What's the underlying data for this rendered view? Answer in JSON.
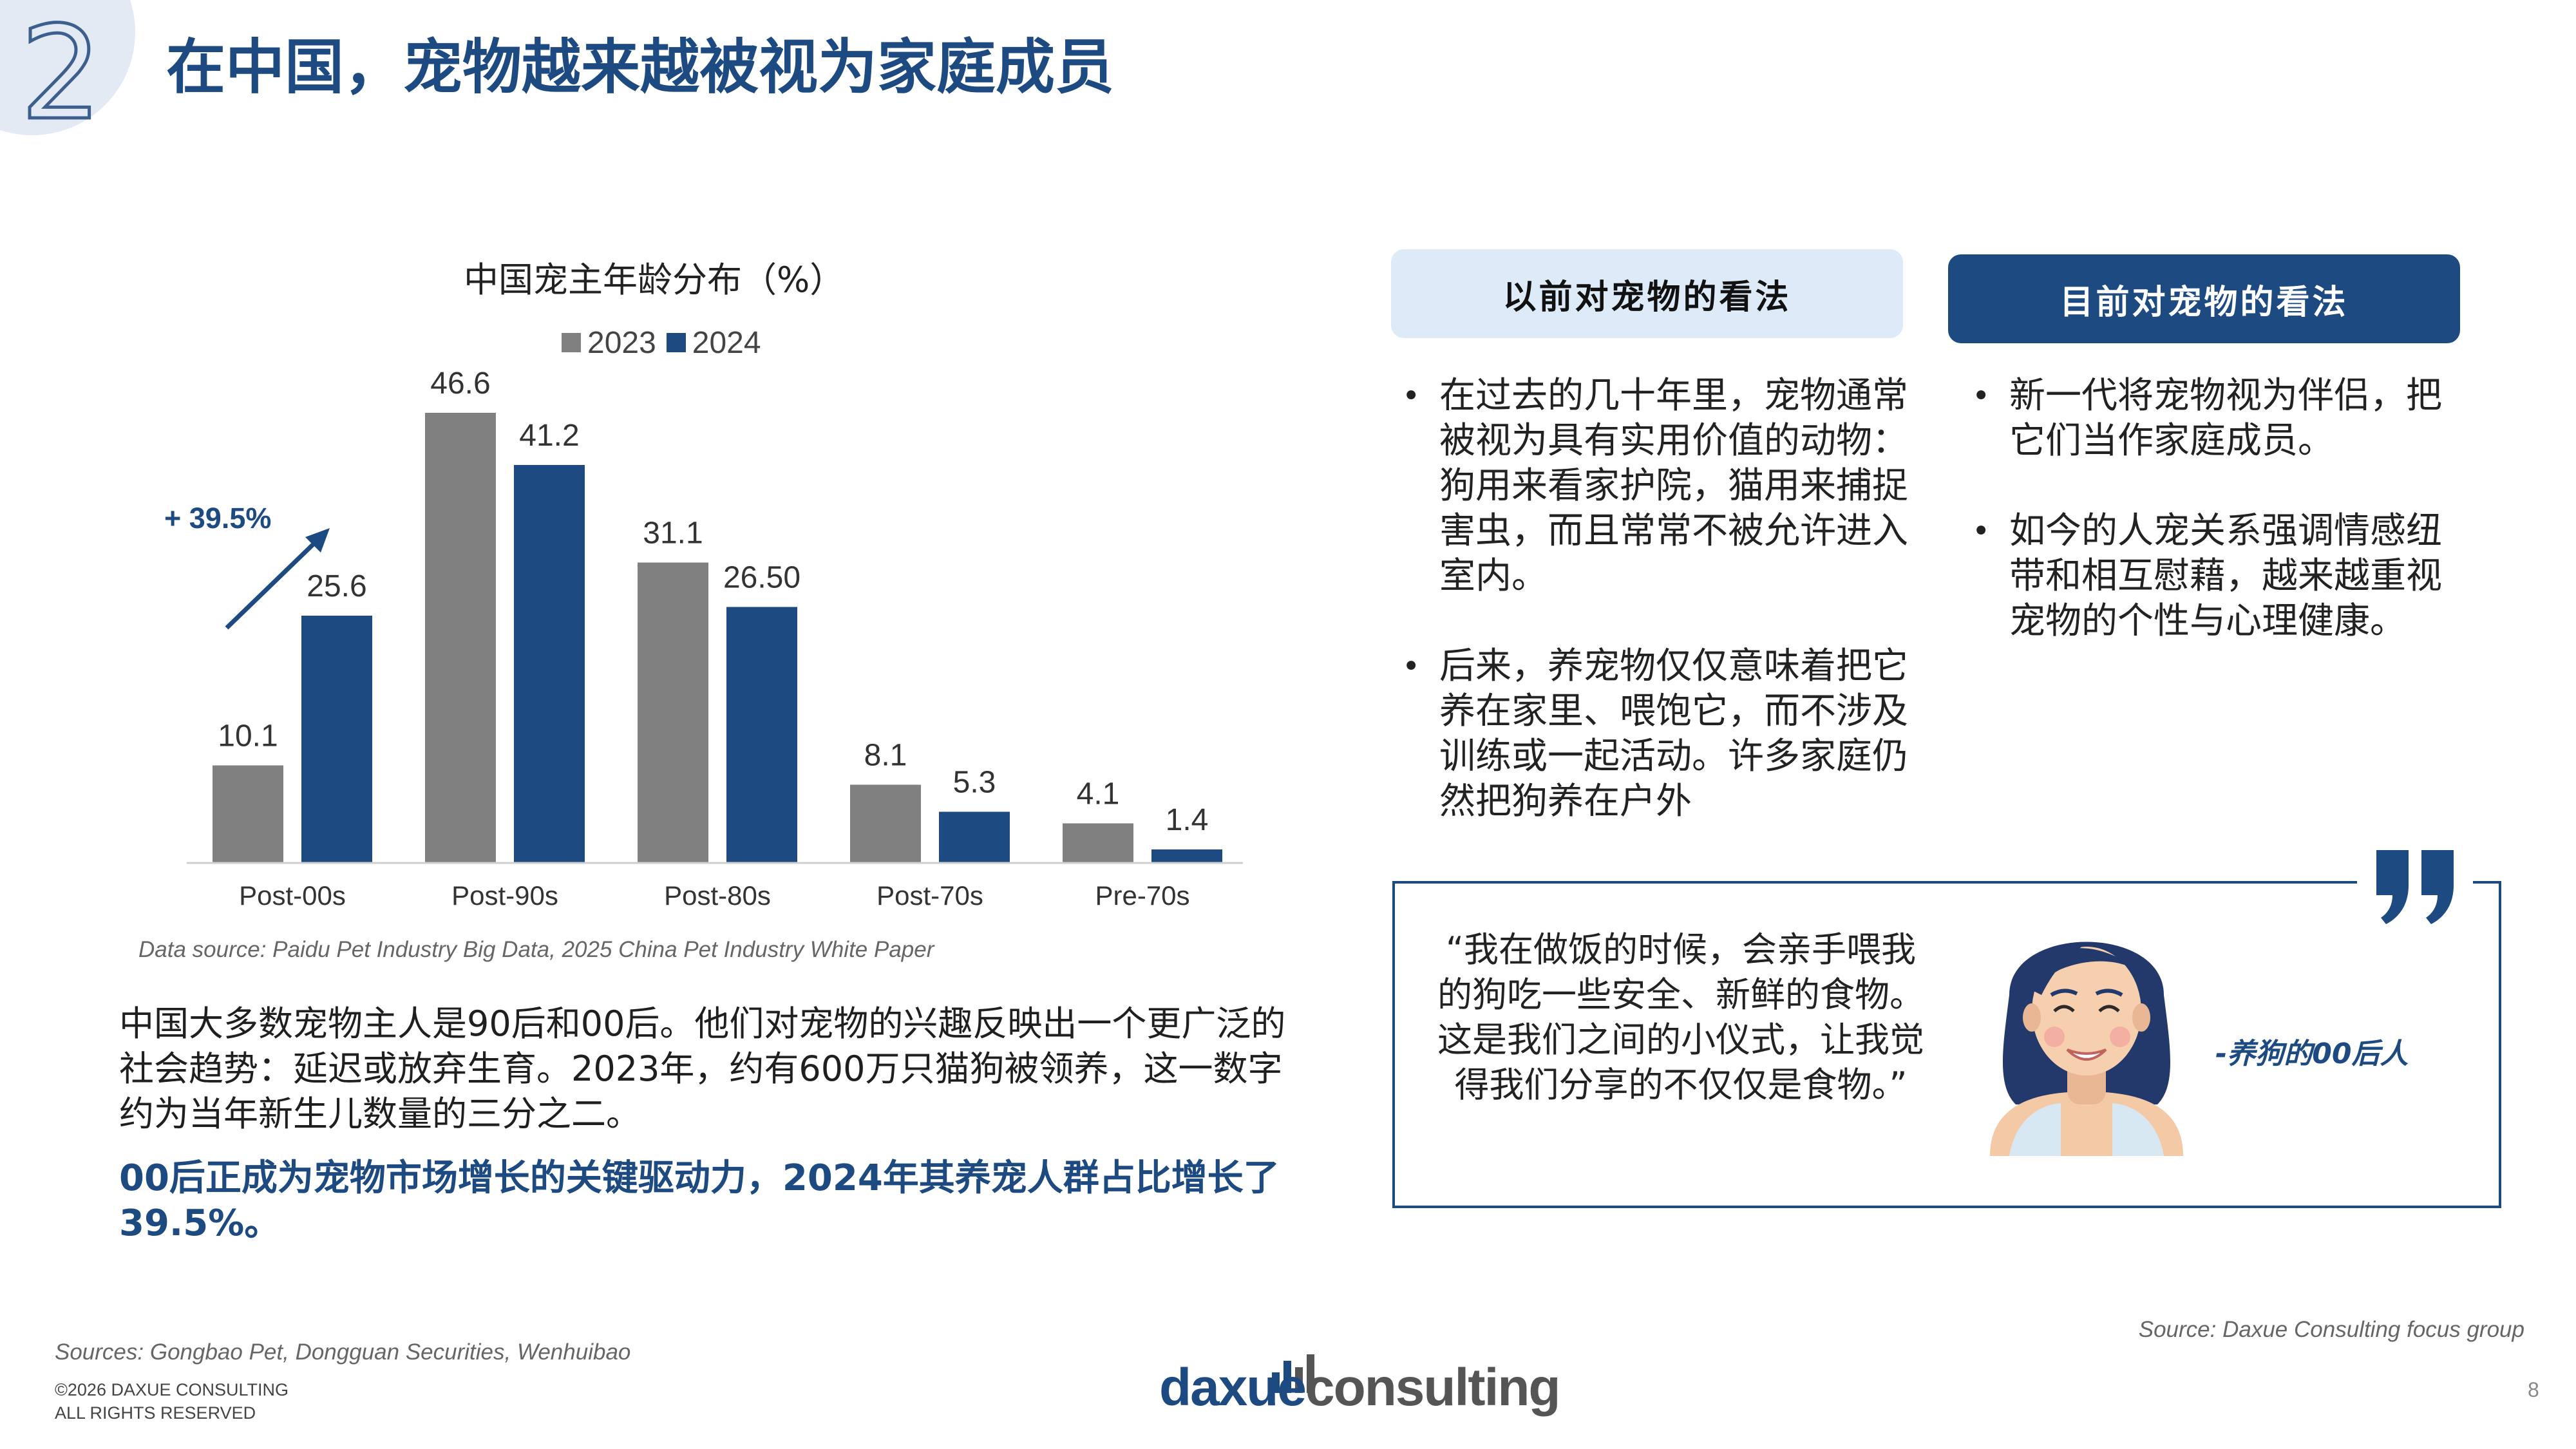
{
  "header": {
    "section_number": "2",
    "title": "在中国，宠物越来越被视为家庭成员"
  },
  "colors": {
    "brand_blue": "#1e4a82",
    "gray_2023": "#808080",
    "blue_2024": "#1e4a82",
    "light_blue": "#dcebf7"
  },
  "chart_data": {
    "type": "bar",
    "title": "中国宠主年龄分布（%）",
    "categories": [
      "Post-00s",
      "Post-90s",
      "Post-80s",
      "Post-70s",
      "Pre-70s"
    ],
    "series": [
      {
        "name": "2023",
        "values": [
          10.1,
          46.6,
          31.1,
          8.1,
          4.1
        ],
        "labels": [
          "10.1",
          "46.6",
          "31.1",
          "8.1",
          "4.1"
        ],
        "color": "#808080"
      },
      {
        "name": "2024",
        "values": [
          25.6,
          41.2,
          26.5,
          5.3,
          1.4
        ],
        "labels": [
          "25.6",
          "41.2",
          "26.50",
          "5.3",
          "1.4"
        ],
        "color": "#1e4a82"
      }
    ],
    "ylim": [
      0,
      50
    ],
    "grid": false,
    "legend_position": "top",
    "annotation": "+ 39.5%"
  },
  "chart_source": "Data source: Paidu Pet Industry Big Data, 2025 China Pet Industry White Paper",
  "body": {
    "paragraph": "中国大多数宠物主人是90后和00后。他们对宠物的兴趣反映出一个更广泛的社会趋势：延迟或放弃生育。2023年，约有600万只猫狗被领养，这一数字约为当年新生儿数量的三分之二。",
    "highlight": "00后正成为宠物市场增长的关键驱动力，2024年其养宠人群占比增长了39.5%。"
  },
  "views": {
    "before": {
      "header": "以前对宠物的看法",
      "bullets": [
        "在过去的几十年里，宠物通常被视为具有实用价值的动物：狗用来看家护院，猫用来捕捉害虫，而且常常不被允许进入室内。",
        "后来，养宠物仅仅意味着把它养在家里、喂饱它，而不涉及训练或一起活动。许多家庭仍然把狗养在户外"
      ]
    },
    "now": {
      "header": "目前对宠物的看法",
      "bullets": [
        "新一代将宠物视为伴侣，把它们当作家庭成员。",
        "如今的人宠关系强调情感纽带和相互慰藉，越来越重视宠物的个性与心理健康。"
      ]
    }
  },
  "quote": {
    "text": "“我在做饭的时候，会亲手喂我的狗吃一些安全、新鲜的食物。这是我们之间的小仪式，让我觉得我们分享的不仅仅是食物。”",
    "author": "-养狗的00后人",
    "icon": "quote-mark-icon",
    "avatar": "woman-avatar"
  },
  "footer": {
    "source_right": "Source: Daxue Consulting focus group",
    "source_left": "Sources: Gongbao Pet, Dongguan Securities, Wenhuibao",
    "copyright_line1": "©2026 DAXUE CONSULTING",
    "copyright_line2": "ALL RIGHTS RESERVED",
    "logo_part1": "daxue",
    "logo_part2": "consulting",
    "page_number": "8"
  }
}
